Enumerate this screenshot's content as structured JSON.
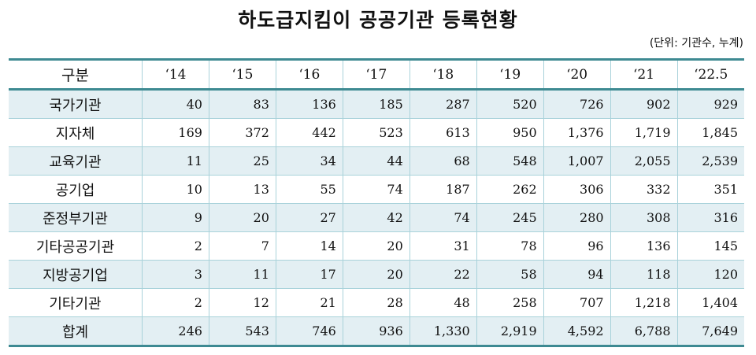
{
  "title": "하도급지킴이 공공기관 등록현황",
  "unit": "(단위: 기관수, 누계)",
  "columns": [
    "구분",
    "‘14",
    "‘15",
    "‘16",
    "‘17",
    "‘18",
    "‘19",
    "‘20",
    "‘21",
    "‘22.5"
  ],
  "rows": [
    {
      "label": "국가기관",
      "values": [
        "40",
        "83",
        "136",
        "185",
        "287",
        "520",
        "726",
        "902",
        "929"
      ]
    },
    {
      "label": "지자체",
      "values": [
        "169",
        "372",
        "442",
        "523",
        "613",
        "950",
        "1,376",
        "1,719",
        "1,845"
      ]
    },
    {
      "label": "교육기관",
      "values": [
        "11",
        "25",
        "34",
        "44",
        "68",
        "548",
        "1,007",
        "2,055",
        "2,539"
      ]
    },
    {
      "label": "공기업",
      "values": [
        "10",
        "13",
        "55",
        "74",
        "187",
        "262",
        "306",
        "332",
        "351"
      ]
    },
    {
      "label": "준정부기관",
      "values": [
        "9",
        "20",
        "27",
        "42",
        "74",
        "245",
        "280",
        "308",
        "316"
      ]
    },
    {
      "label": "기타공공기관",
      "values": [
        "2",
        "7",
        "14",
        "20",
        "31",
        "78",
        "96",
        "136",
        "145"
      ]
    },
    {
      "label": "지방공기업",
      "values": [
        "3",
        "11",
        "17",
        "20",
        "22",
        "58",
        "94",
        "118",
        "120"
      ]
    },
    {
      "label": "기타기관",
      "values": [
        "2",
        "12",
        "21",
        "28",
        "48",
        "258",
        "707",
        "1,218",
        "1,404"
      ]
    },
    {
      "label": "합계",
      "values": [
        "246",
        "543",
        "746",
        "936",
        "1,330",
        "2,919",
        "4,592",
        "6,788",
        "7,649"
      ]
    }
  ],
  "colors": {
    "border": "#3e8a92",
    "grid": "#a9d2da",
    "shade": "#e3eff3"
  }
}
